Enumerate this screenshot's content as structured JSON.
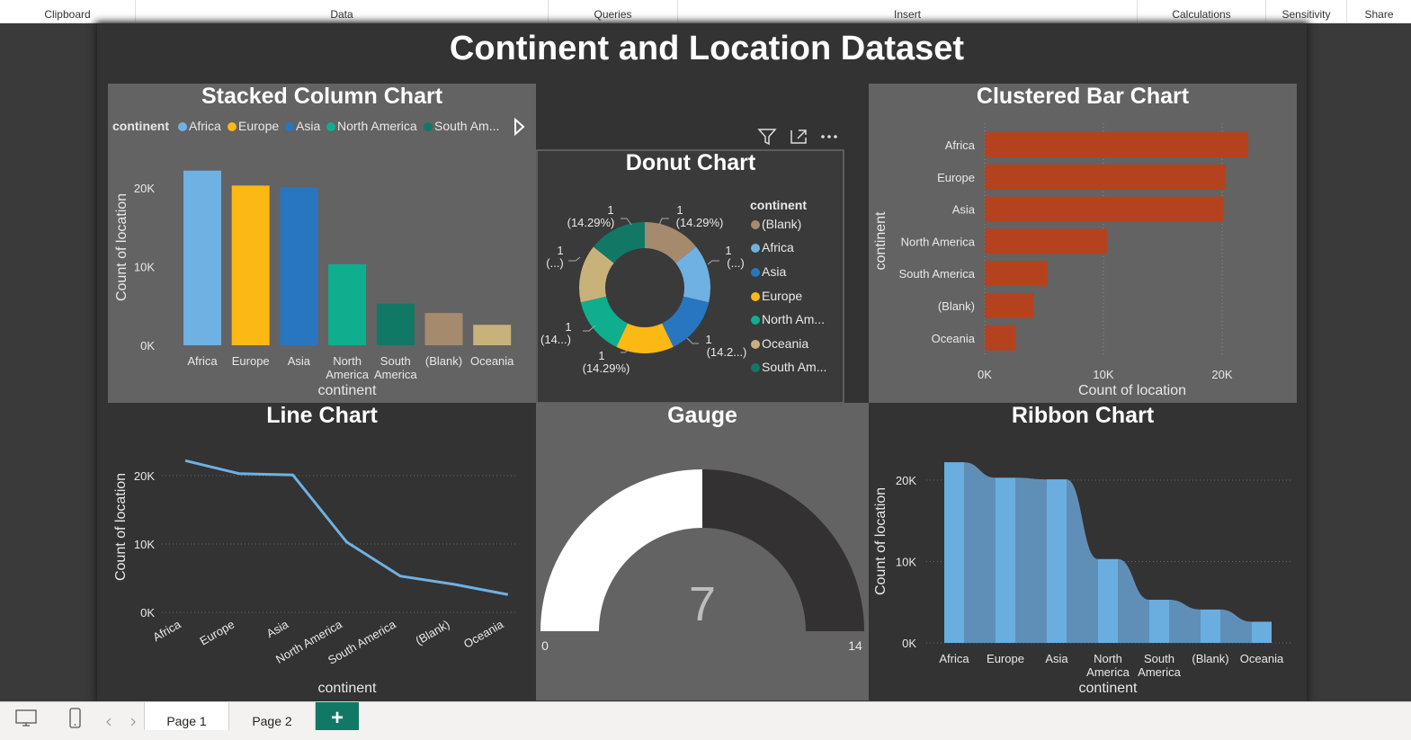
{
  "ribbon": {
    "groups": [
      "Clipboard",
      "Data",
      "Queries",
      "Insert",
      "Calculations",
      "Sensitivity",
      "Share"
    ]
  },
  "report": {
    "title": "Continent and Location Dataset"
  },
  "visuals": {
    "stacked_title": "Stacked Column Chart",
    "donut_title": "Donut Chart",
    "bar_title": "Clustered Bar Chart",
    "line_title": "Line Chart",
    "gauge_title": "Gauge",
    "ribbon_title": "Ribbon Chart"
  },
  "stacked_legend": {
    "title": "continent",
    "items": [
      "Africa",
      "Europe",
      "Asia",
      "North America",
      "South Am..."
    ]
  },
  "donut_legend": {
    "title": "continent",
    "items": [
      "(Blank)",
      "Africa",
      "Asia",
      "Europe",
      "North Am...",
      "Oceania",
      "South Am..."
    ]
  },
  "donut_labels": {
    "a1": "1",
    "a2": "(14.29%)",
    "b1": "1",
    "b2": "(...)",
    "c1": "1",
    "c2": "(14.2...)",
    "d1": "1",
    "d2": "(14.29%)",
    "e1": "1",
    "e2": "(14...)",
    "f1": "1",
    "f2": "(...)",
    "g1": "1",
    "g2": "(14.29%)"
  },
  "gauge": {
    "min_label": "0",
    "max_label": "14",
    "value_label": "7",
    "value": 7,
    "min": 0,
    "max": 14
  },
  "colors": {
    "africa": "#6fb1e3",
    "europe": "#fdb913",
    "asia": "#2876c0",
    "north_america": "#0fae8f",
    "south_america": "#117865",
    "blank": "#a58a6e",
    "oceania": "#c8b27a",
    "bar": "#b5421f",
    "line": "#6fb1e3",
    "ribbon_band": "#6aaee0",
    "ribbon_flow": "#5f8fb6"
  },
  "chart_data": [
    {
      "type": "bar",
      "title": "Stacked Column Chart",
      "categories": [
        "Africa",
        "Europe",
        "Asia",
        "North America",
        "South America",
        "(Blank)",
        "Oceania"
      ],
      "values": [
        22200,
        20300,
        20100,
        10300,
        5300,
        4100,
        2600
      ],
      "xlabel": "continent",
      "ylabel": "Count of location",
      "ylim": [
        0,
        24000
      ],
      "yticks": [
        "0K",
        "10K",
        "20K"
      ],
      "grid": false,
      "legend": "top"
    },
    {
      "type": "pie",
      "title": "Donut Chart",
      "categories": [
        "(Blank)",
        "Africa",
        "Asia",
        "Europe",
        "North America",
        "Oceania",
        "South America"
      ],
      "values": [
        1,
        1,
        1,
        1,
        1,
        1,
        1
      ],
      "legend": "right"
    },
    {
      "type": "bar",
      "title": "Clustered Bar Chart",
      "orientation": "horizontal",
      "categories": [
        "Africa",
        "Europe",
        "Asia",
        "North America",
        "South America",
        "(Blank)",
        "Oceania"
      ],
      "values": [
        22200,
        20300,
        20100,
        10300,
        5300,
        4100,
        2600
      ],
      "xlabel": "Count of location",
      "ylabel": "continent",
      "xlim": [
        0,
        23000
      ],
      "xticks": [
        "0K",
        "10K",
        "20K"
      ],
      "grid": true
    },
    {
      "type": "line",
      "title": "Line Chart",
      "categories": [
        "Africa",
        "Europe",
        "Asia",
        "North America",
        "South America",
        "(Blank)",
        "Oceania"
      ],
      "values": [
        22200,
        20300,
        20100,
        10300,
        5300,
        4100,
        2600
      ],
      "xlabel": "continent",
      "ylabel": "Count of location",
      "ylim": [
        0,
        24000
      ],
      "yticks": [
        "0K",
        "10K",
        "20K"
      ],
      "grid": true
    },
    {
      "type": "area",
      "title": "Ribbon Chart",
      "categories": [
        "Africa",
        "Europe",
        "Asia",
        "North America",
        "South America",
        "(Blank)",
        "Oceania"
      ],
      "values": [
        22200,
        20300,
        20100,
        10300,
        5300,
        4100,
        2600
      ],
      "xlabel": "continent",
      "ylabel": "Count of location",
      "ylim": [
        0,
        22500
      ],
      "yticks": [
        "0K",
        "10K",
        "20K"
      ],
      "grid": true
    }
  ],
  "pages": {
    "page1": "Page 1",
    "page2": "Page 2",
    "add": "+"
  }
}
